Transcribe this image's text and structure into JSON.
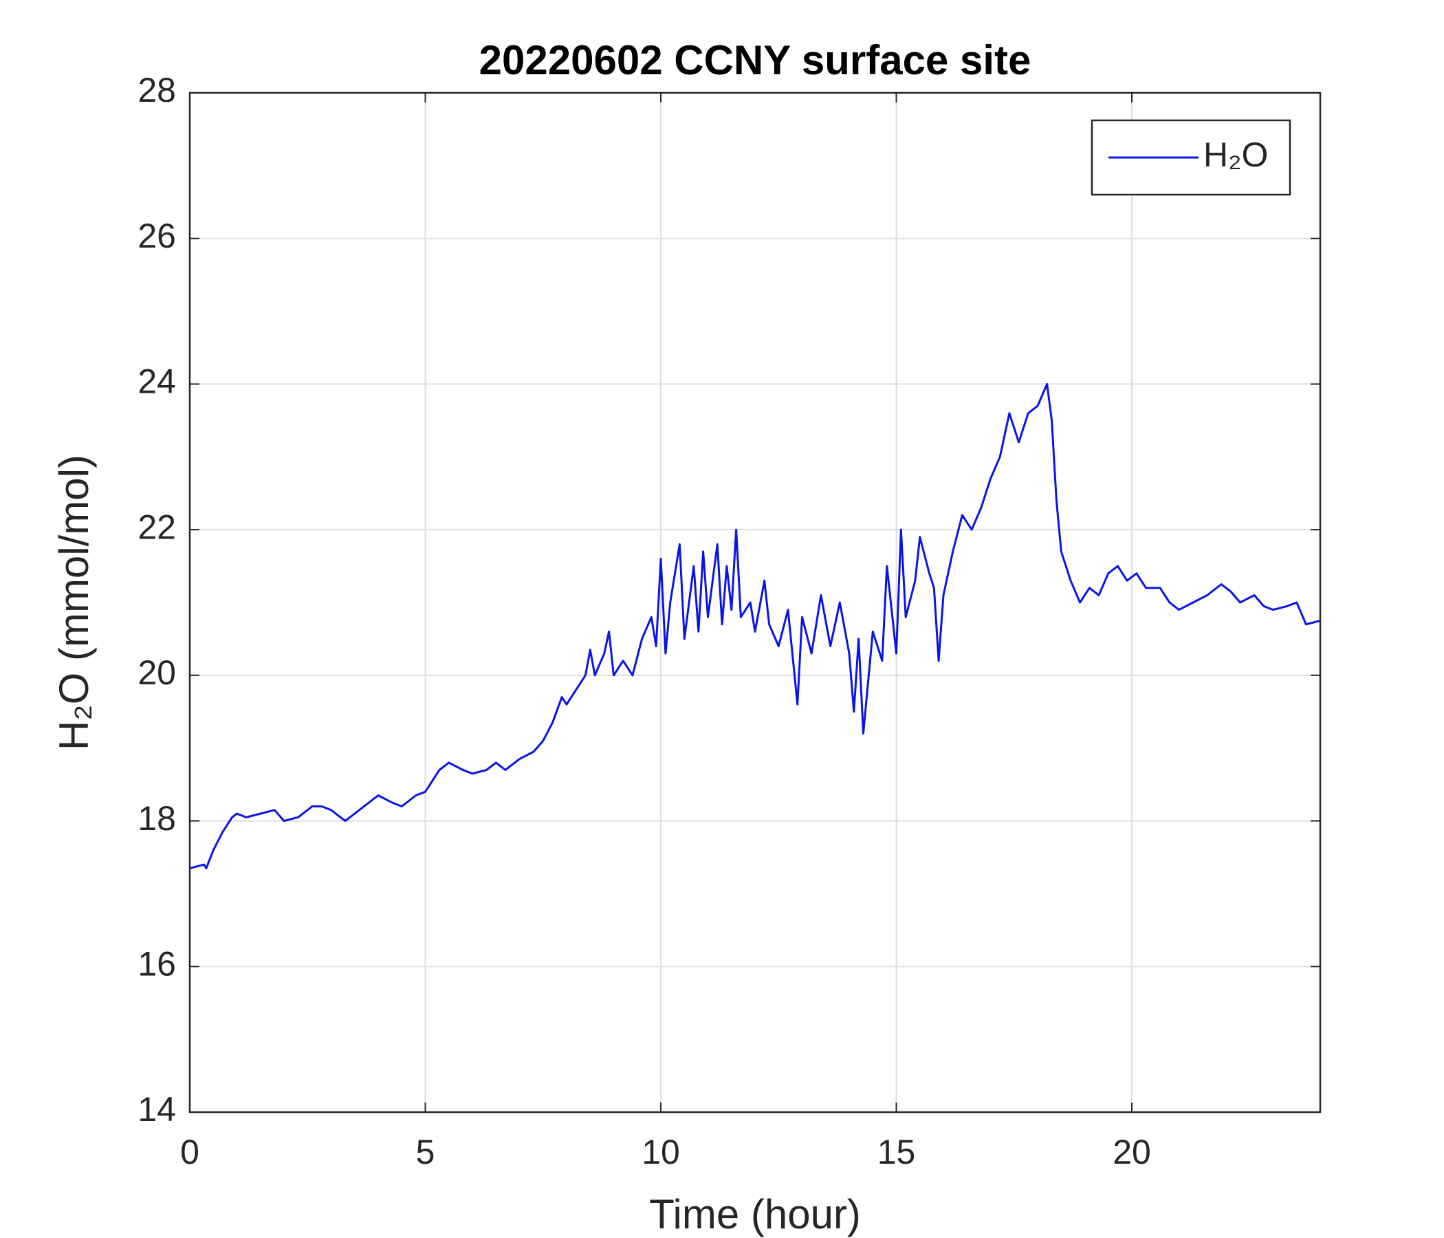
{
  "chart_data": {
    "type": "line",
    "title": "20220602 CCNY surface site",
    "x_label": "Time (hour)",
    "y_label": "H₂O (mmol/mol)",
    "x": [
      0,
      0.3,
      0.35,
      0.5,
      0.7,
      0.9,
      1.0,
      1.2,
      1.5,
      1.8,
      2.0,
      2.3,
      2.6,
      2.8,
      3.0,
      3.3,
      3.6,
      4.0,
      4.3,
      4.5,
      4.8,
      5.0,
      5.3,
      5.5,
      5.8,
      6.0,
      6.3,
      6.5,
      6.7,
      7.0,
      7.3,
      7.5,
      7.7,
      7.9,
      8.0,
      8.2,
      8.4,
      8.5,
      8.6,
      8.8,
      8.9,
      9.0,
      9.2,
      9.4,
      9.6,
      9.8,
      9.9,
      10.0,
      10.1,
      10.2,
      10.4,
      10.5,
      10.7,
      10.8,
      10.9,
      11.0,
      11.2,
      11.3,
      11.4,
      11.5,
      11.6,
      11.7,
      11.9,
      12.0,
      12.2,
      12.3,
      12.5,
      12.7,
      12.9,
      13.0,
      13.2,
      13.4,
      13.6,
      13.8,
      14.0,
      14.1,
      14.2,
      14.3,
      14.5,
      14.7,
      14.8,
      15.0,
      15.1,
      15.2,
      15.4,
      15.5,
      15.7,
      15.8,
      15.9,
      16.0,
      16.2,
      16.4,
      16.6,
      16.8,
      17.0,
      17.2,
      17.4,
      17.6,
      17.8,
      18.0,
      18.2,
      18.3,
      18.4,
      18.5,
      18.7,
      18.9,
      19.1,
      19.3,
      19.5,
      19.7,
      19.9,
      20.1,
      20.3,
      20.6,
      20.8,
      21.0,
      21.3,
      21.6,
      21.9,
      22.1,
      22.3,
      22.6,
      22.8,
      23.0,
      23.3,
      23.5,
      23.7,
      24.0
    ],
    "series": [
      {
        "name": "H₂O",
        "color": "#0a14e6",
        "values": [
          17.35,
          17.4,
          17.35,
          17.6,
          17.85,
          18.05,
          18.1,
          18.05,
          18.1,
          18.15,
          18.0,
          18.05,
          18.2,
          18.2,
          18.15,
          18.0,
          18.15,
          18.35,
          18.25,
          18.2,
          18.35,
          18.4,
          18.7,
          18.8,
          18.7,
          18.65,
          18.7,
          18.8,
          18.7,
          18.85,
          18.95,
          19.1,
          19.35,
          19.7,
          19.6,
          19.8,
          20.0,
          20.35,
          20.0,
          20.3,
          20.6,
          20.0,
          20.2,
          20.0,
          20.5,
          20.8,
          20.4,
          21.6,
          20.3,
          21.0,
          21.8,
          20.5,
          21.5,
          20.6,
          21.7,
          20.8,
          21.8,
          20.7,
          21.5,
          20.9,
          22.0,
          20.8,
          21.0,
          20.6,
          21.3,
          20.7,
          20.4,
          20.9,
          19.6,
          20.8,
          20.3,
          21.1,
          20.4,
          21.0,
          20.3,
          19.5,
          20.5,
          19.2,
          20.6,
          20.2,
          21.5,
          20.3,
          22.0,
          20.8,
          21.3,
          21.9,
          21.4,
          21.2,
          20.2,
          21.1,
          21.7,
          22.2,
          22.0,
          22.3,
          22.7,
          23.0,
          23.6,
          23.2,
          23.6,
          23.7,
          24.0,
          23.5,
          22.4,
          21.7,
          21.3,
          21.0,
          21.2,
          21.1,
          21.4,
          21.5,
          21.3,
          21.4,
          21.2,
          21.2,
          21.0,
          20.9,
          21.0,
          21.1,
          21.25,
          21.15,
          21.0,
          21.1,
          20.95,
          20.9,
          20.95,
          21.0,
          20.7,
          20.75
        ]
      }
    ],
    "xlim": [
      0,
      24
    ],
    "xticks": [
      0,
      5,
      10,
      15,
      20
    ],
    "ylim": [
      14,
      28
    ],
    "yticks": [
      14,
      16,
      18,
      20,
      22,
      24,
      26,
      28
    ],
    "grid": true,
    "legend": "top-right"
  }
}
